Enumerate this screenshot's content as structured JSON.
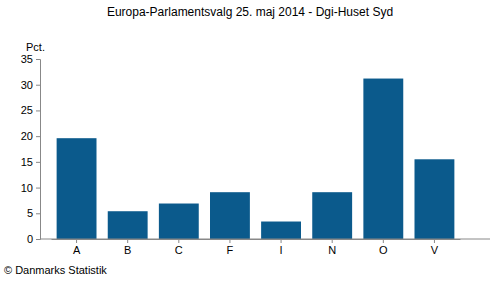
{
  "chart_data": {
    "type": "bar",
    "title": "Europa-Parlamentsvalg 25. maj 2014 - Dgi-Huset Syd",
    "ylabel": "Pct.",
    "categories": [
      "A",
      "B",
      "C",
      "F",
      "I",
      "N",
      "O",
      "V"
    ],
    "values": [
      19.6,
      5.4,
      6.9,
      9.1,
      3.4,
      9.1,
      31.2,
      15.5
    ],
    "color": "#0b5a8c",
    "ylim": [
      0,
      35
    ],
    "yticks": [
      0,
      5,
      10,
      15,
      20,
      25,
      30,
      35
    ],
    "grid": false,
    "annotations": [
      "© Danmarks Statistik"
    ]
  }
}
